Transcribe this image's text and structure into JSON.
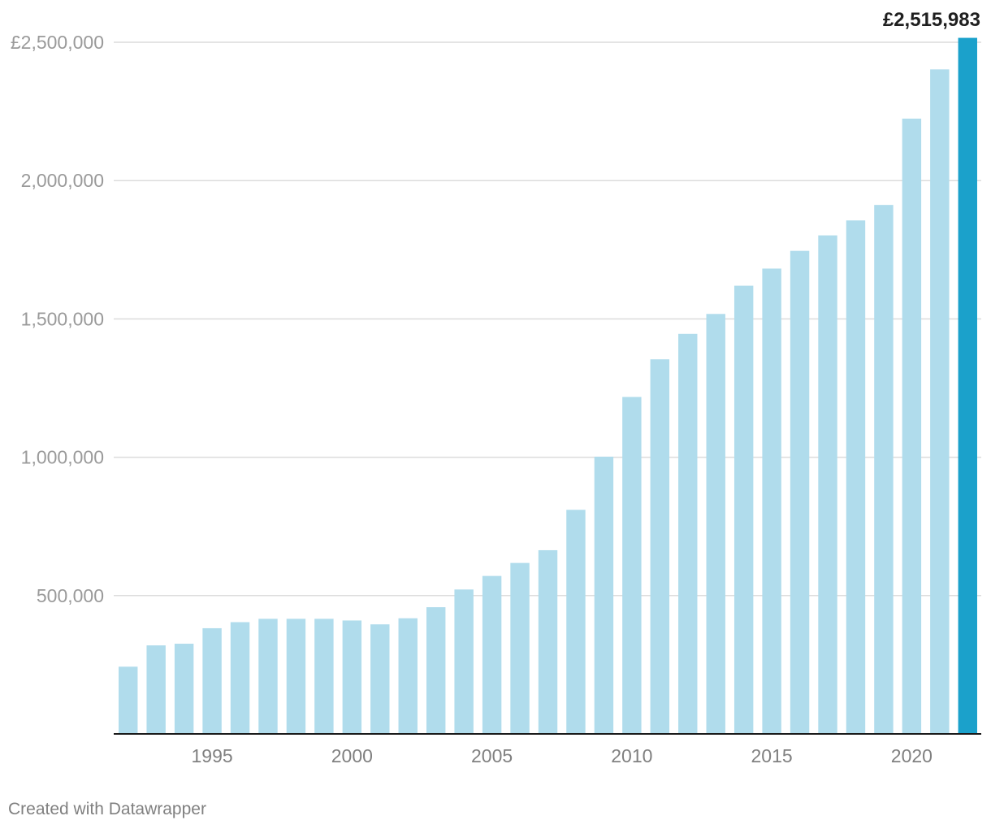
{
  "chart_data": {
    "type": "bar",
    "title": "",
    "xlabel": "",
    "ylabel": "",
    "categories": [
      1992,
      1993,
      1994,
      1995,
      1996,
      1997,
      1998,
      1999,
      2000,
      2001,
      2002,
      2003,
      2004,
      2005,
      2006,
      2007,
      2008,
      2009,
      2010,
      2011,
      2012,
      2013,
      2014,
      2015,
      2016,
      2017,
      2018,
      2019,
      2020,
      2021,
      2022
    ],
    "values": [
      243000,
      320000,
      326000,
      382000,
      404000,
      416000,
      416000,
      416000,
      410000,
      396000,
      418000,
      458000,
      522000,
      571000,
      618000,
      664000,
      810000,
      1002000,
      1218000,
      1354000,
      1446000,
      1518000,
      1620000,
      1682000,
      1746000,
      1802000,
      1856000,
      1912000,
      2224000,
      2402000,
      2515983
    ],
    "ylim": [
      0,
      2500000
    ],
    "y_ticks": [
      {
        "value": 500000,
        "label": "500,000"
      },
      {
        "value": 1000000,
        "label": "1,000,000"
      },
      {
        "value": 1500000,
        "label": "1,500,000"
      },
      {
        "value": 2000000,
        "label": "2,000,000"
      },
      {
        "value": 2500000,
        "label": "£2,500,000"
      }
    ],
    "x_ticks": [
      {
        "value": 1995,
        "label": "1995"
      },
      {
        "value": 2000,
        "label": "2000"
      },
      {
        "value": 2005,
        "label": "2005"
      },
      {
        "value": 2010,
        "label": "2010"
      },
      {
        "value": 2015,
        "label": "2015"
      },
      {
        "value": 2020,
        "label": "2020"
      }
    ],
    "highlight_index": 30,
    "highlight_label": "£2,515,983",
    "colors": {
      "bar": "#b0dcec",
      "highlight": "#1ba1cb"
    },
    "grid": true
  },
  "footer": {
    "credit": "Created with Datawrapper"
  }
}
